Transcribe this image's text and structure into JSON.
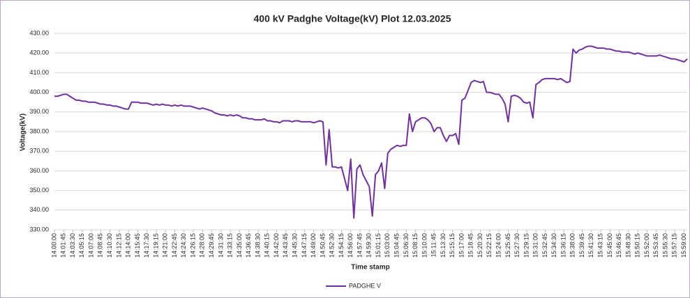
{
  "chart_data": {
    "type": "line",
    "title": "400 kV Padghe Voltage(kV) Plot 12.03.2025",
    "x_label": "Time stamp",
    "y_label": "Voltage(kV)",
    "legend": "bottom",
    "grid": true,
    "ylim": [
      330,
      430
    ],
    "yticks": [
      {
        "value": 330,
        "label": "330.00"
      },
      {
        "value": 340,
        "label": "340.00"
      },
      {
        "value": 350,
        "label": "350.00"
      },
      {
        "value": 360,
        "label": "360.00"
      },
      {
        "value": 370,
        "label": "370.00"
      },
      {
        "value": 380,
        "label": "380.00"
      },
      {
        "value": 390,
        "label": "390.00"
      },
      {
        "value": 400,
        "label": "400.00"
      },
      {
        "value": 410,
        "label": "410.00"
      },
      {
        "value": 420,
        "label": "420.00"
      },
      {
        "value": 430,
        "label": "430.00"
      }
    ],
    "xlim": [
      "14:00:00",
      "15:59:35"
    ],
    "xticks": [
      "14:00:00",
      "14:01:45",
      "14:03:30",
      "14:05:15",
      "14:07:00",
      "14:08:45",
      "14:10:30",
      "14:12:15",
      "14:14:00",
      "14:15:45",
      "14:17:30",
      "14:19:15",
      "14:21:00",
      "14:22:45",
      "14:24:30",
      "14:26:15",
      "14:28:00",
      "14:29:45",
      "14:31:30",
      "14:33:15",
      "14:35:00",
      "14:36:45",
      "14:38:30",
      "14:40:15",
      "14:42:00",
      "14:43:45",
      "14:45:30",
      "14:47:15",
      "14:49:00",
      "14:50:45",
      "14:52:30",
      "14:54:15",
      "14:56:00",
      "14:57:45",
      "14:59:30",
      "15:01:15",
      "15:03:00",
      "15:04:45",
      "15:06:30",
      "15:08:15",
      "15:10:00",
      "15:11:45",
      "15:13:30",
      "15:15:15",
      "15:17:00",
      "15:18:45",
      "15:20:30",
      "15:22:15",
      "15:24:00",
      "15:25:45",
      "15:27:30",
      "15:29:15",
      "15:31:00",
      "15:32:45",
      "15:34:30",
      "15:36:15",
      "15:38:00",
      "15:39:45",
      "15:41:30",
      "15:43:15",
      "15:45:00",
      "15:46:45",
      "15:48:30",
      "15:50:15",
      "15:52:00",
      "15:53:45",
      "15:55:30",
      "15:57:15",
      "15:59:00"
    ],
    "x": [
      "14:00:00",
      "14:00:35",
      "14:01:10",
      "14:01:45",
      "14:02:20",
      "14:02:55",
      "14:03:30",
      "14:04:05",
      "14:04:40",
      "14:05:15",
      "14:05:50",
      "14:06:25",
      "14:07:00",
      "14:07:35",
      "14:08:10",
      "14:08:45",
      "14:09:20",
      "14:09:55",
      "14:10:30",
      "14:11:05",
      "14:11:40",
      "14:12:15",
      "14:12:50",
      "14:13:25",
      "14:14:00",
      "14:14:35",
      "14:15:10",
      "14:15:45",
      "14:16:20",
      "14:16:55",
      "14:17:30",
      "14:18:05",
      "14:18:40",
      "14:19:15",
      "14:19:50",
      "14:20:25",
      "14:21:00",
      "14:21:35",
      "14:22:10",
      "14:22:45",
      "14:23:20",
      "14:23:55",
      "14:24:30",
      "14:25:05",
      "14:25:40",
      "14:26:15",
      "14:26:50",
      "14:27:25",
      "14:28:00",
      "14:28:35",
      "14:29:10",
      "14:29:45",
      "14:30:20",
      "14:30:55",
      "14:31:30",
      "14:32:05",
      "14:32:40",
      "14:33:15",
      "14:33:50",
      "14:34:25",
      "14:35:00",
      "14:35:35",
      "14:36:10",
      "14:36:45",
      "14:37:20",
      "14:37:55",
      "14:38:30",
      "14:39:05",
      "14:39:40",
      "14:40:15",
      "14:40:50",
      "14:41:25",
      "14:42:00",
      "14:42:35",
      "14:43:10",
      "14:43:45",
      "14:44:20",
      "14:44:55",
      "14:45:30",
      "14:46:05",
      "14:46:40",
      "14:47:15",
      "14:47:50",
      "14:48:25",
      "14:49:00",
      "14:49:35",
      "14:50:10",
      "14:50:45",
      "14:51:20",
      "14:51:55",
      "14:52:30",
      "14:53:05",
      "14:53:40",
      "14:54:15",
      "14:54:50",
      "14:55:25",
      "14:56:00",
      "14:56:35",
      "14:57:10",
      "14:57:45",
      "14:58:20",
      "14:58:55",
      "14:59:30",
      "15:00:05",
      "15:00:40",
      "15:01:15",
      "15:01:50",
      "15:02:25",
      "15:03:00",
      "15:03:35",
      "15:04:10",
      "15:04:45",
      "15:05:20",
      "15:05:55",
      "15:06:30",
      "15:07:05",
      "15:07:40",
      "15:08:15",
      "15:08:50",
      "15:09:25",
      "15:10:00",
      "15:10:35",
      "15:11:10",
      "15:11:45",
      "15:12:20",
      "15:12:55",
      "15:13:30",
      "15:14:05",
      "15:14:40",
      "15:15:15",
      "15:15:50",
      "15:16:25",
      "15:17:00",
      "15:17:35",
      "15:18:10",
      "15:18:45",
      "15:19:20",
      "15:19:55",
      "15:20:30",
      "15:21:05",
      "15:21:40",
      "15:22:15",
      "15:22:50",
      "15:23:25",
      "15:24:00",
      "15:24:35",
      "15:25:10",
      "15:25:45",
      "15:26:20",
      "15:26:55",
      "15:27:30",
      "15:28:05",
      "15:28:40",
      "15:29:15",
      "15:29:50",
      "15:30:25",
      "15:31:00",
      "15:31:35",
      "15:32:10",
      "15:32:45",
      "15:33:20",
      "15:33:55",
      "15:34:30",
      "15:35:05",
      "15:35:40",
      "15:36:15",
      "15:36:50",
      "15:37:25",
      "15:38:00",
      "15:38:35",
      "15:39:10",
      "15:39:45",
      "15:40:20",
      "15:40:55",
      "15:41:30",
      "15:42:05",
      "15:42:40",
      "15:43:15",
      "15:43:50",
      "15:44:25",
      "15:45:00",
      "15:45:35",
      "15:46:10",
      "15:46:45",
      "15:47:20",
      "15:47:55",
      "15:48:30",
      "15:49:05",
      "15:49:40",
      "15:50:15",
      "15:50:50",
      "15:51:25",
      "15:52:00",
      "15:52:35",
      "15:53:10",
      "15:53:45",
      "15:54:20",
      "15:54:55",
      "15:55:30",
      "15:56:05",
      "15:56:40",
      "15:57:15",
      "15:57:50",
      "15:58:25",
      "15:59:00",
      "15:59:35"
    ],
    "series": [
      {
        "name": "PADGHE V",
        "color": "#7030a0",
        "values": [
          398,
          398,
          398.5,
          399,
          399,
          398,
          397,
          396,
          396,
          395.5,
          395.5,
          395,
          395,
          395,
          394.5,
          394,
          394,
          393.5,
          393.5,
          393,
          393,
          392.5,
          392,
          391.5,
          391.5,
          395,
          395,
          395,
          394.5,
          394.5,
          394.5,
          394,
          393.5,
          394,
          393.5,
          394,
          393.5,
          393.5,
          393,
          393.5,
          393,
          393.5,
          393,
          393,
          393,
          392.5,
          392,
          391.5,
          392,
          391.5,
          391,
          390.5,
          389.5,
          389,
          388.5,
          388.5,
          388,
          388.5,
          388,
          388.5,
          388,
          387,
          387,
          386.5,
          386.5,
          386,
          386,
          386,
          386.5,
          385.5,
          385.5,
          385,
          385,
          384.5,
          385.5,
          385.5,
          385.5,
          385,
          385.5,
          385.5,
          385,
          385,
          385,
          385,
          384.5,
          385,
          385.5,
          385,
          363,
          381,
          362,
          362,
          361.5,
          362,
          356,
          350,
          366,
          336,
          361,
          363,
          358,
          355,
          352,
          337,
          358,
          360,
          364,
          351,
          369,
          371,
          372,
          373,
          372.5,
          373,
          373,
          389,
          380,
          385,
          386,
          387,
          387,
          386,
          384,
          380,
          382,
          382,
          378,
          375,
          378,
          378,
          379,
          373.5,
          396,
          397,
          401,
          405,
          406,
          405.5,
          405,
          405.5,
          400,
          400,
          399.5,
          399,
          399,
          397,
          394,
          385,
          398,
          398.5,
          398,
          397,
          395,
          394.5,
          395,
          387,
          404,
          405,
          406.5,
          407,
          407,
          407,
          407,
          406.5,
          407,
          406,
          405,
          405.5,
          422,
          420,
          421.5,
          422,
          423,
          423.5,
          423.5,
          423,
          422.5,
          422.5,
          422.5,
          422,
          422,
          421.5,
          421,
          421,
          420.5,
          420.5,
          420.5,
          420,
          419.5,
          420,
          419.5,
          419,
          418.5,
          418.5,
          418.5,
          418.5,
          419,
          418.5,
          418,
          417.5,
          417,
          417,
          416.5,
          416,
          415.5,
          417
        ]
      }
    ]
  }
}
